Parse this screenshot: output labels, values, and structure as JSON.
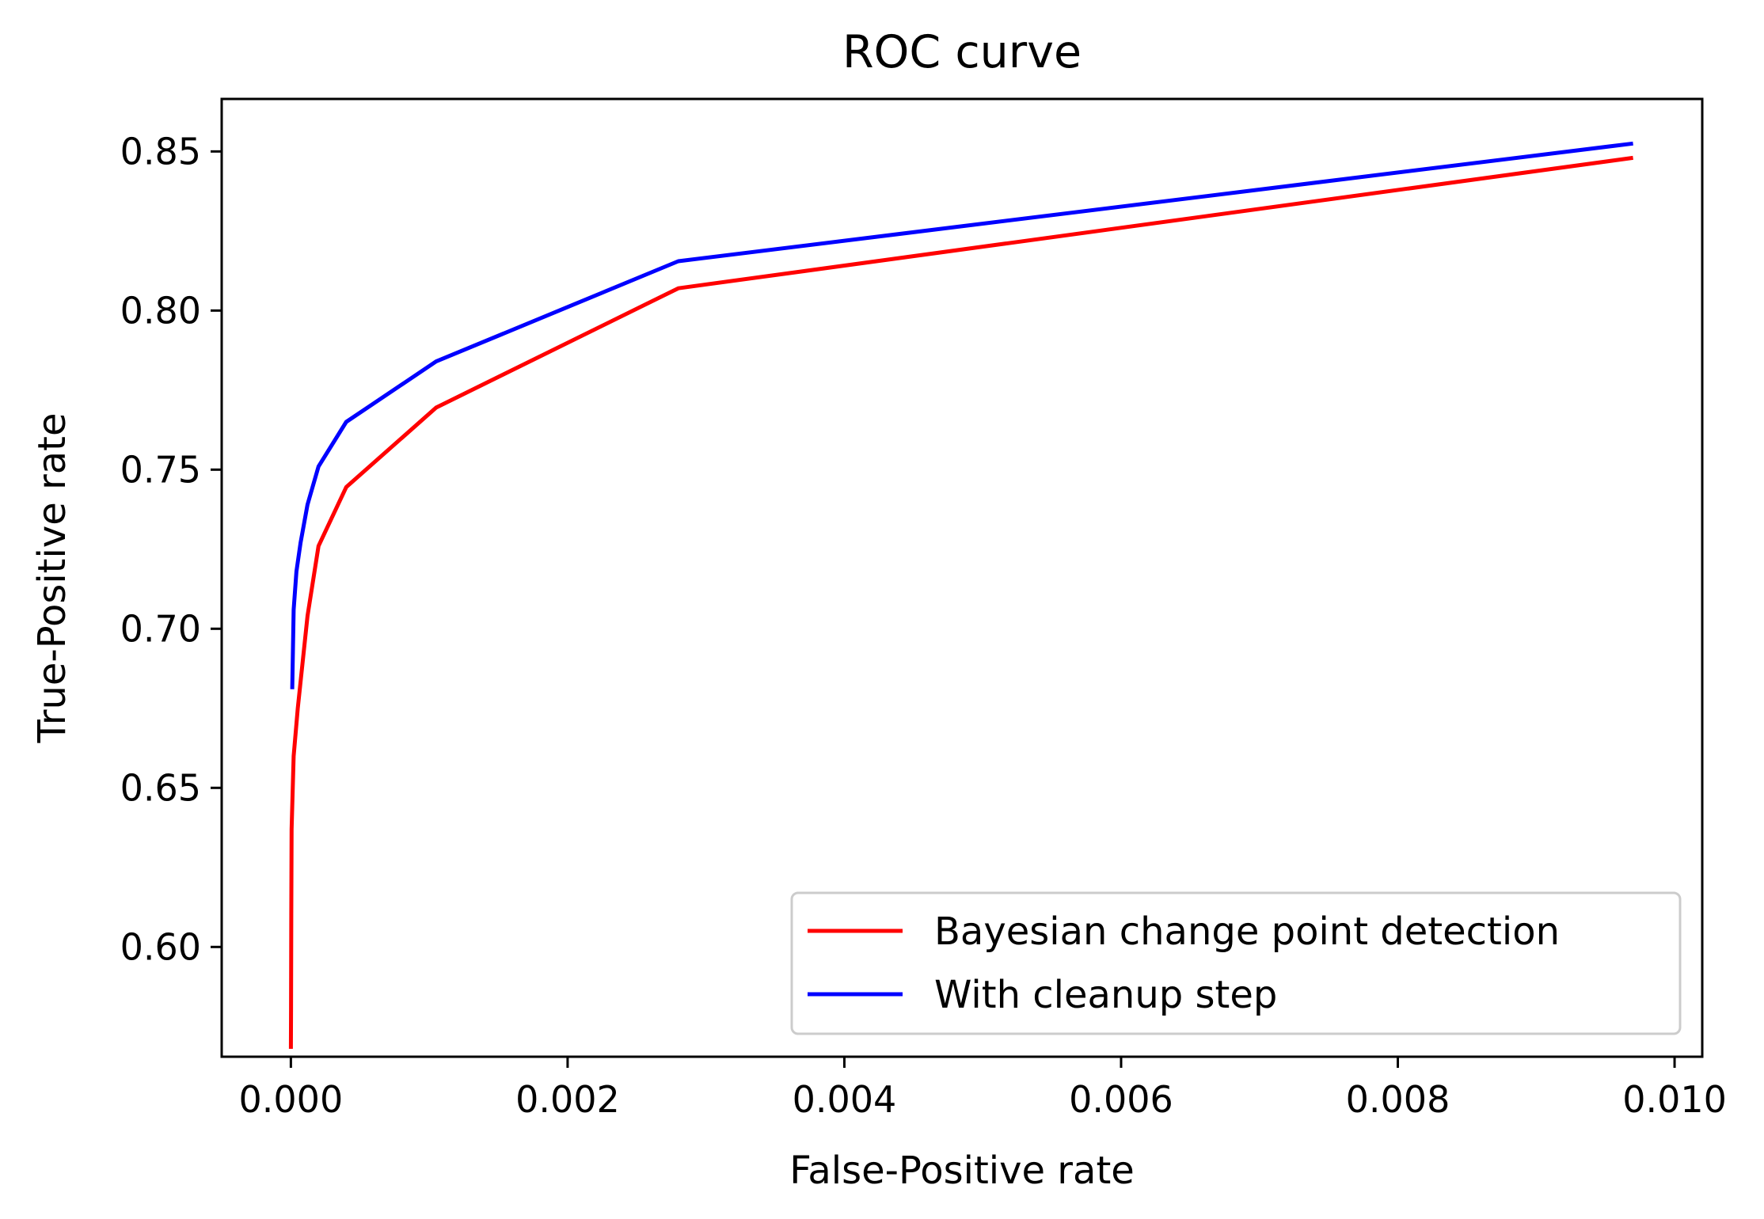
{
  "chart_data": {
    "type": "line",
    "title": "ROC curve",
    "xlabel": "False-Positive rate",
    "ylabel": "True-Positive rate",
    "xlim": [
      -0.0005,
      0.0102
    ],
    "ylim": [
      0.5655,
      0.8665
    ],
    "x_ticks": [
      0.0,
      0.002,
      0.004,
      0.006,
      0.008,
      0.01
    ],
    "x_tick_labels": [
      "0.000",
      "0.002",
      "0.004",
      "0.006",
      "0.008",
      "0.010"
    ],
    "y_ticks": [
      0.6,
      0.65,
      0.7,
      0.75,
      0.8,
      0.85
    ],
    "y_tick_labels": [
      "0.60",
      "0.65",
      "0.70",
      "0.75",
      "0.80",
      "0.85"
    ],
    "grid": false,
    "legend_position": "lower-right",
    "series": [
      {
        "name": "Bayesian change point detection",
        "color": "#ff0000",
        "points": [
          [
            0.0,
            0.568
          ],
          [
            1.5e-06,
            0.58
          ],
          [
            3e-06,
            0.61
          ],
          [
            5e-06,
            0.637
          ],
          [
            2e-05,
            0.66
          ],
          [
            5e-05,
            0.675
          ],
          [
            0.00012,
            0.704
          ],
          [
            0.0002,
            0.726
          ],
          [
            0.0004,
            0.7445
          ],
          [
            0.00105,
            0.7695
          ],
          [
            0.0028,
            0.807
          ],
          [
            0.0097,
            0.848
          ]
        ]
      },
      {
        "name": "With cleanup step",
        "color": "#0000ff",
        "points": [
          [
            1e-05,
            0.681
          ],
          [
            2e-05,
            0.706
          ],
          [
            4e-05,
            0.718
          ],
          [
            7e-05,
            0.727
          ],
          [
            0.00012,
            0.739
          ],
          [
            0.0002,
            0.751
          ],
          [
            0.0004,
            0.765
          ],
          [
            0.00105,
            0.784
          ],
          [
            0.0028,
            0.8155
          ],
          [
            0.0097,
            0.8525
          ]
        ]
      }
    ]
  }
}
